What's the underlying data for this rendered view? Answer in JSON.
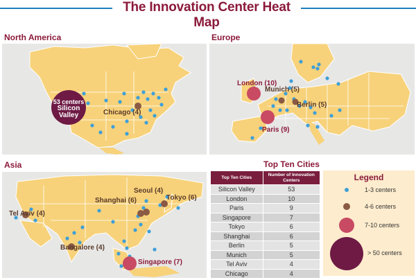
{
  "title": "The Innovation Center Heat Map",
  "colors": {
    "land": "#f7d27a",
    "panel_bg": "#e7e7e6",
    "small_dot": "#3f9fd7",
    "medium_dot": "#8a5a44",
    "large_dot": "#c94a63",
    "huge_dot": "#6e1a45",
    "accent": "#8b1a3a"
  },
  "regions": {
    "north_america": {
      "title": "North America",
      "silicon_valley_count": "53 centers",
      "silicon_valley_name_1": "Silicon",
      "silicon_valley_name_2": "Valley",
      "chicago": "Chicago (4)"
    },
    "europe": {
      "title": "Europe",
      "london": "London (10)",
      "munich": "Munich (5)",
      "berlin": "Berlin (5)",
      "paris": "Paris (9)"
    },
    "asia": {
      "title": "Asia",
      "seoul": "Seoul (4)",
      "tokyo": "Tokyo (6)",
      "shanghai": "Shanghai (6)",
      "tel_aviv": "Tel Aviv (4)",
      "bangalore": "Bangalore (4)",
      "singapore": "Singapore (7)"
    }
  },
  "top_ten": {
    "title": "Top Ten Cities",
    "headers": [
      "Top Ten Cities",
      "Number of Innovation Centers"
    ],
    "rows": [
      [
        "Silicon Valley",
        "53"
      ],
      [
        "London",
        "10"
      ],
      [
        "Paris",
        "9"
      ],
      [
        "Singapore",
        "7"
      ],
      [
        "Tokyo",
        "6"
      ],
      [
        "Shanghai",
        "6"
      ],
      [
        "Berlin",
        "5"
      ],
      [
        "Munich",
        "5"
      ],
      [
        "Tel Aviv",
        "4"
      ],
      [
        "Chicago",
        "4"
      ]
    ]
  },
  "legend": {
    "title": "Legend",
    "items": [
      "1-3 centers",
      "4-6 centers",
      "7-10 centers",
      "> 50 centers"
    ]
  }
}
